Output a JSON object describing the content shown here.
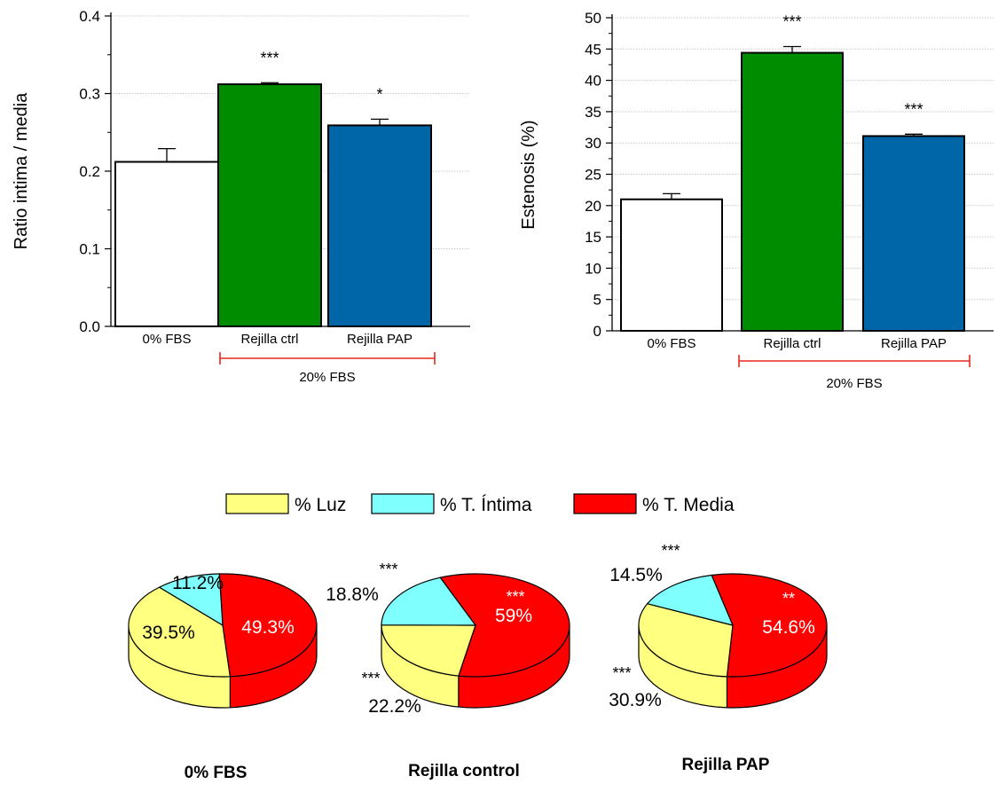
{
  "chart_data": [
    {
      "type": "bar",
      "ylabel": "Ratio intima / media",
      "ylim": [
        0,
        0.4
      ],
      "yticks": [
        0.0,
        0.1,
        0.2,
        0.3,
        0.4
      ],
      "ytick_labels": [
        "0.0",
        "0.1",
        "0.2",
        "0.3",
        "0.4"
      ],
      "grid": true,
      "categories": [
        "0% FBS",
        "Rejilla ctrl",
        "Rejilla PAP"
      ],
      "values": [
        0.212,
        0.312,
        0.259
      ],
      "errors": [
        0.017,
        0.002,
        0.008
      ],
      "significance": [
        "",
        "***",
        "*"
      ],
      "colors": [
        "#ffffff",
        "#008c00",
        "#0066a8"
      ],
      "group_label": "20% FBS"
    },
    {
      "type": "bar",
      "ylabel": "Estenosis (%)",
      "ylim": [
        0,
        50
      ],
      "yticks": [
        0,
        5,
        10,
        15,
        20,
        25,
        30,
        35,
        40,
        45,
        50
      ],
      "ytick_labels": [
        "0",
        "5",
        "10",
        "15",
        "20",
        "25",
        "30",
        "35",
        "40",
        "45",
        "50"
      ],
      "grid": true,
      "categories": [
        "0% FBS",
        "Rejilla ctrl",
        "Rejilla PAP"
      ],
      "values": [
        21.0,
        44.4,
        31.1
      ],
      "errors": [
        0.9,
        1.0,
        0.3
      ],
      "significance": [
        "",
        "***",
        "***"
      ],
      "colors": [
        "#ffffff",
        "#008c00",
        "#0066a8"
      ],
      "group_label": "20% FBS"
    },
    {
      "type": "pie",
      "legend": [
        {
          "name": "% Luz",
          "color": "#ffff80"
        },
        {
          "name": "% T. Íntima",
          "color": "#80ffff"
        },
        {
          "name": "% T. Media",
          "color": "#ff0000"
        }
      ],
      "legend_position": "top",
      "pies": [
        {
          "title": "0% FBS",
          "values": [
            39.5,
            11.2,
            49.3
          ],
          "labels": [
            "39.5%",
            "11.2%",
            "49.3%"
          ],
          "significance": [
            "",
            "",
            ""
          ]
        },
        {
          "title": "Rejilla control",
          "values": [
            22.2,
            18.8,
            59.0
          ],
          "labels": [
            "22.2%",
            "18.8%",
            "59%"
          ],
          "significance": [
            "***",
            "***",
            "***"
          ]
        },
        {
          "title": "Rejilla PAP",
          "values": [
            30.9,
            14.5,
            54.6
          ],
          "labels": [
            "30.9%",
            "14.5%",
            "54.6%"
          ],
          "significance": [
            "***",
            "***",
            "**"
          ]
        }
      ]
    }
  ]
}
